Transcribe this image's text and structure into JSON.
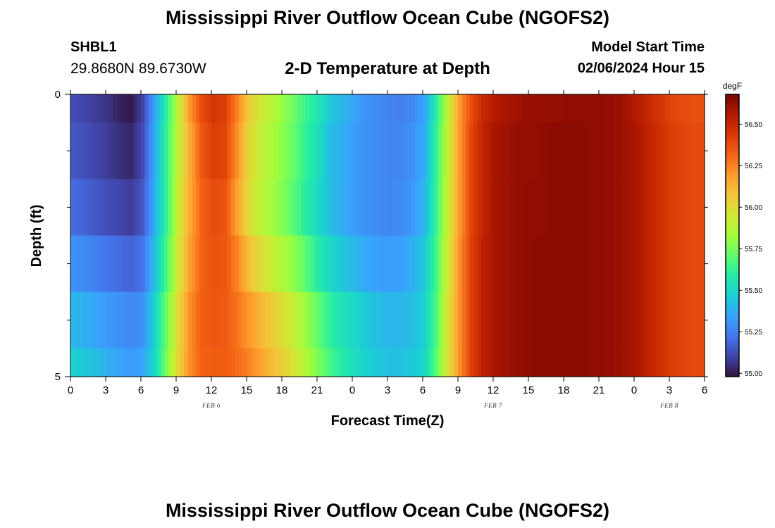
{
  "header": {
    "title": "Mississippi River Outflow Ocean Cube (NGOFS2)",
    "station": "SHBL1",
    "coords": "29.8680N  89.6730W",
    "subtitle": "2-D Temperature at Depth",
    "model_start_label": "Model Start Time",
    "model_start_value": "02/06/2024 Hour 15"
  },
  "footer": {
    "title": "Mississippi River Outflow Ocean Cube (NGOFS2)"
  },
  "chart_data": {
    "type": "heatmap",
    "xlabel": "Forecast Time(Z)",
    "ylabel": "Depth (ft)",
    "x_tick_labels": [
      "0",
      "3",
      "6",
      "9",
      "12",
      "15",
      "18",
      "21",
      "0",
      "3",
      "6",
      "9",
      "12",
      "15",
      "18",
      "21",
      "0",
      "3",
      "6"
    ],
    "x_range_hours": [
      0,
      54
    ],
    "date_labels": [
      {
        "text": "FEB 6",
        "hour": 12
      },
      {
        "text": "FEB 7",
        "hour": 36
      },
      {
        "text": "FEB 8",
        "hour": 51
      }
    ],
    "y_tick_labels": [
      "0",
      "5"
    ],
    "ylim": [
      0,
      5
    ],
    "colorbar": {
      "unit": "degF",
      "range": [
        54.98,
        56.68
      ],
      "ticks": [
        "55.00",
        "55.25",
        "55.50",
        "55.75",
        "56.00",
        "56.25",
        "56.50"
      ],
      "colors": [
        "#30123b",
        "#4145ab",
        "#4675ed",
        "#39a2fc",
        "#1bcfd4",
        "#24eca6",
        "#61fc6c",
        "#a4fc3b",
        "#d1e834",
        "#f3c63a",
        "#fe9b2d",
        "#f36315",
        "#d93806",
        "#b11901",
        "#7a0402"
      ]
    },
    "time_hours": [
      0,
      1,
      2,
      3,
      4,
      5,
      6,
      7,
      8,
      9,
      10,
      11,
      12,
      13,
      14,
      15,
      16,
      17,
      18,
      19,
      20,
      21,
      22,
      23,
      24,
      25,
      26,
      27,
      28,
      29,
      30,
      31,
      32,
      33,
      34,
      35,
      36,
      37,
      38,
      39,
      40,
      41,
      42,
      43,
      44,
      45,
      46,
      47,
      48,
      49,
      50,
      51,
      52,
      53
    ],
    "depth_layers": [
      {
        "depth": "0-0.5",
        "temps": [
          55.12,
          55.1,
          55.08,
          55.06,
          55.02,
          55.0,
          55.1,
          55.35,
          55.6,
          55.9,
          56.2,
          56.38,
          56.45,
          56.42,
          56.25,
          56.05,
          55.95,
          55.88,
          55.8,
          55.72,
          55.62,
          55.55,
          55.45,
          55.4,
          55.35,
          55.3,
          55.28,
          55.26,
          55.25,
          55.28,
          55.35,
          55.6,
          55.9,
          56.2,
          56.38,
          56.5,
          56.55,
          56.58,
          56.6,
          56.62,
          56.62,
          56.62,
          56.63,
          56.63,
          56.63,
          56.63,
          56.62,
          56.6,
          56.55,
          56.5,
          56.45,
          56.4,
          56.38,
          56.37
        ]
      },
      {
        "depth": "0.5-1.5",
        "temps": [
          55.15,
          55.13,
          55.1,
          55.08,
          55.05,
          55.03,
          55.12,
          55.37,
          55.62,
          55.9,
          56.15,
          56.35,
          56.42,
          56.4,
          56.22,
          56.02,
          55.92,
          55.85,
          55.78,
          55.7,
          55.6,
          55.52,
          55.42,
          55.38,
          55.33,
          55.3,
          55.28,
          55.27,
          55.27,
          55.3,
          55.38,
          55.62,
          55.92,
          56.2,
          56.4,
          56.52,
          56.58,
          56.6,
          56.62,
          56.62,
          56.63,
          56.64,
          56.64,
          56.64,
          56.63,
          56.63,
          56.62,
          56.6,
          56.57,
          56.52,
          56.47,
          56.42,
          56.4,
          56.38
        ]
      },
      {
        "depth": "1.5-2.5",
        "temps": [
          55.2,
          55.18,
          55.15,
          55.12,
          55.1,
          55.08,
          55.15,
          55.38,
          55.62,
          55.92,
          56.15,
          56.32,
          56.38,
          56.36,
          56.18,
          56.0,
          55.9,
          55.83,
          55.76,
          55.68,
          55.58,
          55.5,
          55.42,
          55.37,
          55.33,
          55.3,
          55.28,
          55.27,
          55.28,
          55.32,
          55.4,
          55.63,
          55.93,
          56.2,
          56.4,
          56.52,
          56.58,
          56.6,
          56.62,
          56.63,
          56.63,
          56.64,
          56.64,
          56.64,
          56.63,
          56.63,
          56.62,
          56.6,
          56.57,
          56.52,
          56.47,
          56.42,
          56.4,
          56.38
        ]
      },
      {
        "depth": "2.5-3.5",
        "temps": [
          55.3,
          55.28,
          55.25,
          55.22,
          55.2,
          55.18,
          55.22,
          55.42,
          55.66,
          55.95,
          56.18,
          56.32,
          56.36,
          56.35,
          56.25,
          56.1,
          56.0,
          55.92,
          55.85,
          55.78,
          55.68,
          55.58,
          55.5,
          55.44,
          55.4,
          55.36,
          55.34,
          55.33,
          55.34,
          55.38,
          55.45,
          55.66,
          55.95,
          56.22,
          56.42,
          56.53,
          56.58,
          56.6,
          56.62,
          56.63,
          56.64,
          56.64,
          56.64,
          56.64,
          56.63,
          56.63,
          56.62,
          56.6,
          56.57,
          56.52,
          56.47,
          56.42,
          56.4,
          56.38
        ]
      },
      {
        "depth": "3.5-4.5",
        "temps": [
          55.4,
          55.38,
          55.35,
          55.32,
          55.3,
          55.28,
          55.3,
          55.48,
          55.72,
          56.0,
          56.22,
          56.33,
          56.35,
          56.34,
          56.28,
          56.2,
          56.12,
          56.05,
          55.98,
          55.9,
          55.8,
          55.7,
          55.6,
          55.54,
          55.5,
          55.45,
          55.42,
          55.4,
          55.4,
          55.42,
          55.48,
          55.68,
          55.97,
          56.22,
          56.42,
          56.53,
          56.58,
          56.6,
          56.62,
          56.63,
          56.64,
          56.64,
          56.64,
          56.64,
          56.63,
          56.63,
          56.62,
          56.6,
          56.57,
          56.52,
          56.47,
          56.42,
          56.4,
          56.38
        ]
      },
      {
        "depth": "4.5-5",
        "temps": [
          55.48,
          55.45,
          55.42,
          55.38,
          55.35,
          55.33,
          55.35,
          55.5,
          55.75,
          56.02,
          56.22,
          56.32,
          56.33,
          56.33,
          56.3,
          56.25,
          56.18,
          56.1,
          56.03,
          55.95,
          55.85,
          55.75,
          55.65,
          55.58,
          55.53,
          55.48,
          55.45,
          55.43,
          55.43,
          55.45,
          55.5,
          55.7,
          55.98,
          56.22,
          56.42,
          56.53,
          56.58,
          56.6,
          56.62,
          56.63,
          56.64,
          56.64,
          56.64,
          56.64,
          56.63,
          56.63,
          56.62,
          56.6,
          56.57,
          56.52,
          56.47,
          56.42,
          56.4,
          56.38
        ]
      }
    ]
  }
}
